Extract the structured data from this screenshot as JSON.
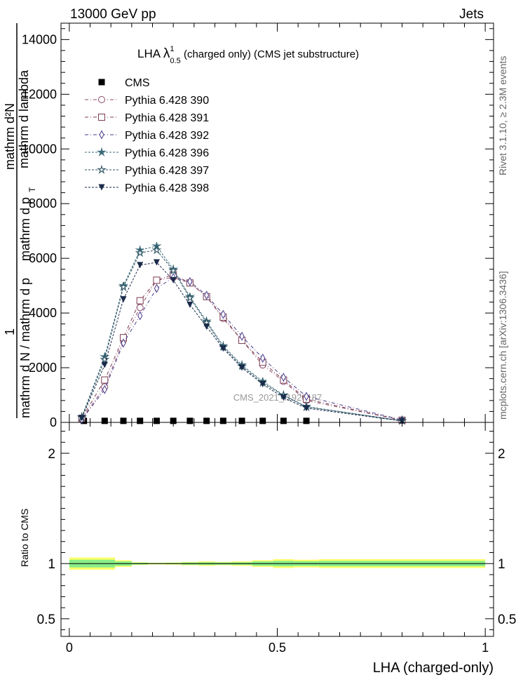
{
  "header": {
    "left": "13000 GeV pp",
    "right": "Jets"
  },
  "title": {
    "prefix": "LHA ",
    "symbol": "λ",
    "sup": "1",
    "sub": "0.5",
    "suffix": " (charged only) (CMS jet substructure)"
  },
  "ylabel": {
    "numerator": "1",
    "denominator_line1": "mathrm d N / mathrm d p",
    "sub_T": "T",
    "line2": "mathrm d p",
    "deriv": "mathrm d²N",
    "lambda": "mathrm d lambda"
  },
  "side_texts": {
    "rivet": "Rivet 3.1.10, ≥ 2.3M events",
    "mcplots": "mcplots.cern.ch [arXiv:1306.3436]"
  },
  "watermark": "CMS_2021_I1920187",
  "ratio_ylabel": "Ratio to CMS",
  "xlabel": "LHA (charged-only)",
  "chart_data": [
    {
      "type": "line",
      "panel": "main",
      "title": "LHA λ^1_0.5 (charged only) (CMS jet substructure)",
      "xlabel": "LHA (charged-only)",
      "ylabel": "1/N dN/dp_T d²N/dp_T dλ",
      "xlim": [
        -0.02,
        1.02
      ],
      "ylim": [
        0,
        14600
      ],
      "y_ticks": [
        0,
        2000,
        4000,
        6000,
        8000,
        10000,
        12000,
        14000
      ],
      "y_tick_labels": [
        "0",
        "2000",
        "4000",
        "6000",
        "8000",
        "10000",
        "12000",
        "14000"
      ],
      "x_ticks": [
        0,
        0.5,
        1
      ],
      "legend_position": "top-left",
      "series": [
        {
          "name": "CMS",
          "style": "data",
          "color": "#000000",
          "x": [
            0.035,
            0.085,
            0.13,
            0.17,
            0.21,
            0.25,
            0.29,
            0.33,
            0.37,
            0.415,
            0.465,
            0.515,
            0.57
          ],
          "y": [
            30,
            30,
            30,
            30,
            30,
            30,
            30,
            30,
            30,
            30,
            30,
            30,
            30
          ]
        },
        {
          "name": "Pythia 6.428 390",
          "style": "dashdot",
          "marker": "circle",
          "color": "#8b4a6b",
          "x": [
            0.03,
            0.085,
            0.13,
            0.17,
            0.21,
            0.25,
            0.29,
            0.33,
            0.37,
            0.415,
            0.465,
            0.515,
            0.57,
            0.8
          ],
          "y": [
            120,
            1300,
            3000,
            4200,
            5200,
            5300,
            5100,
            4600,
            3800,
            3000,
            2100,
            1500,
            800,
            80
          ]
        },
        {
          "name": "Pythia 6.428 391",
          "style": "dashdot",
          "marker": "square",
          "color": "#7a3a52",
          "x": [
            0.03,
            0.085,
            0.13,
            0.17,
            0.21,
            0.25,
            0.29,
            0.33,
            0.37,
            0.415,
            0.465,
            0.515,
            0.57,
            0.8
          ],
          "y": [
            150,
            1550,
            3100,
            4450,
            5200,
            5400,
            5100,
            4600,
            3850,
            3000,
            2200,
            1550,
            850,
            80
          ]
        },
        {
          "name": "Pythia 6.428 392",
          "style": "dashdot",
          "marker": "diamond",
          "color": "#4a3a8a",
          "x": [
            0.03,
            0.085,
            0.13,
            0.17,
            0.21,
            0.25,
            0.29,
            0.33,
            0.37,
            0.415,
            0.465,
            0.515,
            0.57,
            0.8
          ],
          "y": [
            100,
            1200,
            2900,
            3900,
            4900,
            5300,
            5150,
            4650,
            3950,
            3150,
            2350,
            1650,
            950,
            90
          ]
        },
        {
          "name": "Pythia 6.428 396",
          "style": "dashed",
          "marker": "star",
          "color": "#3a6a7a",
          "x": [
            0.03,
            0.085,
            0.13,
            0.17,
            0.21,
            0.25,
            0.29,
            0.33,
            0.37,
            0.415,
            0.465,
            0.515,
            0.57,
            0.8
          ],
          "y": [
            200,
            2400,
            5000,
            6300,
            6450,
            5600,
            4600,
            3700,
            2800,
            2100,
            1500,
            1000,
            580,
            60
          ]
        },
        {
          "name": "Pythia 6.428 397",
          "style": "dashed",
          "marker": "star-open",
          "color": "#2a5060",
          "x": [
            0.03,
            0.085,
            0.13,
            0.17,
            0.21,
            0.25,
            0.29,
            0.33,
            0.37,
            0.415,
            0.465,
            0.515,
            0.57,
            0.8
          ],
          "y": [
            180,
            2300,
            4950,
            6200,
            6300,
            5550,
            4550,
            3650,
            2750,
            2050,
            1450,
            980,
            560,
            60
          ]
        },
        {
          "name": "Pythia 6.428 398",
          "style": "dashed",
          "marker": "triangle-down",
          "color": "#1a2a4a",
          "x": [
            0.03,
            0.085,
            0.13,
            0.17,
            0.21,
            0.25,
            0.29,
            0.33,
            0.37,
            0.415,
            0.465,
            0.515,
            0.57,
            0.8
          ],
          "y": [
            160,
            2100,
            4500,
            5750,
            5850,
            5200,
            4300,
            3500,
            2700,
            2000,
            1400,
            900,
            520,
            50
          ]
        }
      ]
    },
    {
      "type": "area",
      "panel": "ratio",
      "ylabel": "Ratio to CMS",
      "xlabel": "LHA (charged-only)",
      "xlim": [
        -0.02,
        1.02
      ],
      "ylim": [
        0.34,
        2.28
      ],
      "y_ticks": [
        0.5,
        1,
        2
      ],
      "y_tick_labels": [
        "0.5",
        "1",
        "2"
      ],
      "x_ticks": [
        0,
        0.5,
        1
      ],
      "x_tick_labels": [
        "0",
        "0.5",
        "1"
      ],
      "bin_edges": [
        0,
        0.06,
        0.11,
        0.15,
        0.19,
        0.23,
        0.27,
        0.31,
        0.35,
        0.39,
        0.44,
        0.49,
        0.54,
        0.6,
        1.0
      ],
      "outer_band_halfwidth": [
        0.055,
        0.055,
        0.03,
        0.012,
        0.008,
        0.01,
        0.015,
        0.02,
        0.015,
        0.02,
        0.03,
        0.04,
        0.035,
        0.04
      ],
      "inner_band_halfwidth": [
        0.035,
        0.035,
        0.02,
        0.008,
        0.005,
        0.006,
        0.01,
        0.012,
        0.01,
        0.012,
        0.02,
        0.025,
        0.022,
        0.025
      ],
      "colors": {
        "outer": "#ffff66",
        "inner": "#88ee88",
        "line": "#000000"
      }
    }
  ]
}
